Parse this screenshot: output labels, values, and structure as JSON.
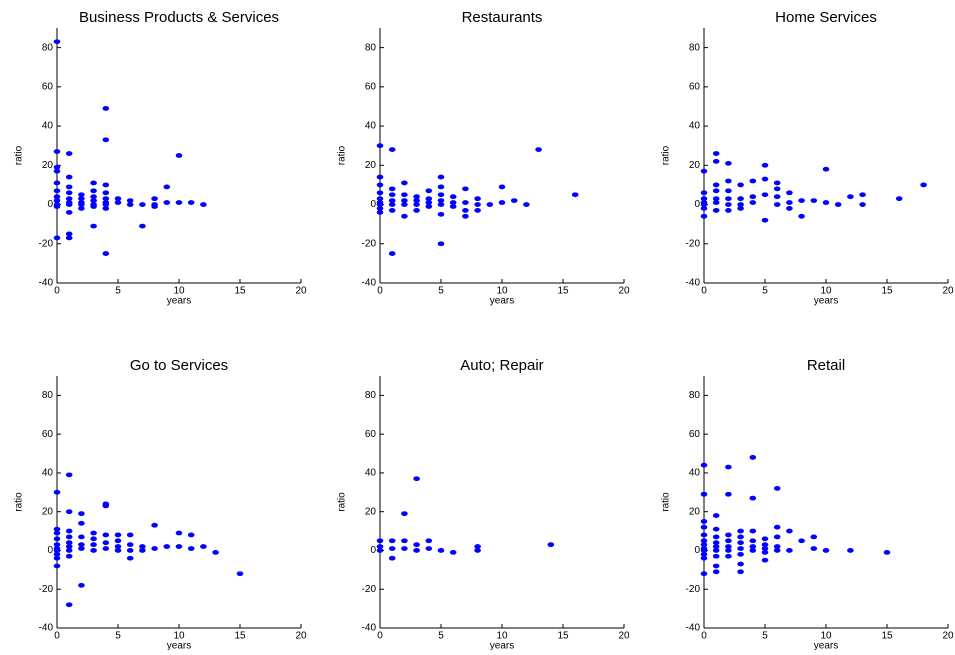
{
  "chart_data": [
    {
      "type": "scatter",
      "title": "Business Products & Services",
      "xlabel": "years",
      "ylabel": "ratio",
      "color": "#0000ff",
      "xlim": [
        0,
        20
      ],
      "ylim": [
        -40,
        90
      ],
      "xticks": [
        0,
        5,
        10,
        15,
        20
      ],
      "yticks": [
        -40,
        -20,
        0,
        20,
        40,
        60,
        80
      ],
      "x": [
        0,
        0,
        0,
        0,
        0,
        0,
        0,
        0,
        0,
        0,
        0,
        1,
        1,
        1,
        1,
        1,
        1,
        1,
        1,
        1,
        1,
        2,
        2,
        2,
        2,
        2,
        3,
        3,
        3,
        3,
        3,
        3,
        3,
        4,
        4,
        4,
        4,
        4,
        4,
        4,
        4,
        4,
        5,
        5,
        6,
        6,
        7,
        7,
        8,
        8,
        8,
        9,
        9,
        10,
        10,
        11,
        12
      ],
      "values": [
        83,
        27,
        19,
        17,
        11,
        7,
        4,
        2,
        0,
        -1,
        -17,
        26,
        14,
        9,
        6,
        3,
        1,
        0,
        -4,
        -15,
        -17,
        5,
        3,
        1,
        0,
        -2,
        11,
        7,
        4,
        2,
        0,
        -1,
        -11,
        49,
        33,
        10,
        6,
        3,
        1,
        0,
        -2,
        -25,
        3,
        1,
        2,
        0,
        0,
        -11,
        3,
        0,
        -1,
        9,
        1,
        25,
        1,
        1,
        0
      ]
    },
    {
      "type": "scatter",
      "title": "Restaurants",
      "xlabel": "years",
      "ylabel": "ratio",
      "color": "#0000ff",
      "xlim": [
        0,
        20
      ],
      "ylim": [
        -40,
        90
      ],
      "xticks": [
        0,
        5,
        10,
        15,
        20
      ],
      "yticks": [
        -40,
        -20,
        0,
        20,
        40,
        60,
        80
      ],
      "x": [
        0,
        0,
        0,
        0,
        0,
        0,
        0,
        0,
        0,
        1,
        1,
        1,
        1,
        1,
        1,
        1,
        2,
        2,
        2,
        2,
        2,
        3,
        3,
        3,
        3,
        4,
        4,
        4,
        4,
        5,
        5,
        5,
        5,
        5,
        5,
        5,
        6,
        6,
        6,
        7,
        7,
        7,
        7,
        8,
        8,
        8,
        9,
        10,
        10,
        11,
        12,
        13,
        16
      ],
      "values": [
        30,
        14,
        10,
        6,
        3,
        1,
        0,
        -2,
        -4,
        28,
        8,
        5,
        2,
        0,
        -3,
        -25,
        11,
        5,
        2,
        0,
        -6,
        4,
        2,
        0,
        -3,
        7,
        3,
        1,
        -1,
        14,
        9,
        5,
        2,
        0,
        -5,
        -20,
        4,
        1,
        -1,
        8,
        1,
        -3,
        -6,
        3,
        0,
        -3,
        0,
        9,
        1,
        2,
        0,
        28,
        5
      ]
    },
    {
      "type": "scatter",
      "title": "Home Services",
      "xlabel": "years",
      "ylabel": "ratio",
      "color": "#0000ff",
      "xlim": [
        0,
        20
      ],
      "ylim": [
        -40,
        90
      ],
      "xticks": [
        0,
        5,
        10,
        15,
        20
      ],
      "yticks": [
        -40,
        -20,
        0,
        20,
        40,
        60,
        80
      ],
      "x": [
        0,
        0,
        0,
        0,
        0,
        0,
        0,
        1,
        1,
        1,
        1,
        1,
        1,
        1,
        2,
        2,
        2,
        2,
        2,
        2,
        3,
        3,
        3,
        3,
        4,
        4,
        4,
        5,
        5,
        5,
        5,
        6,
        6,
        6,
        6,
        7,
        7,
        7,
        8,
        8,
        9,
        10,
        10,
        11,
        12,
        13,
        13,
        16,
        18
      ],
      "values": [
        17,
        6,
        3,
        1,
        0,
        -2,
        -6,
        26,
        22,
        10,
        7,
        3,
        1,
        -3,
        21,
        12,
        7,
        3,
        0,
        -3,
        10,
        3,
        0,
        -2,
        12,
        4,
        1,
        20,
        13,
        5,
        -8,
        11,
        8,
        4,
        0,
        6,
        1,
        -2,
        2,
        -6,
        2,
        18,
        1,
        0,
        4,
        5,
        0,
        3,
        10
      ]
    },
    {
      "type": "scatter",
      "title": "Go to Services",
      "xlabel": "years",
      "ylabel": "ratio",
      "color": "#0000ff",
      "xlim": [
        0,
        20
      ],
      "ylim": [
        -40,
        90
      ],
      "xticks": [
        0,
        5,
        10,
        15,
        20
      ],
      "yticks": [
        -40,
        -20,
        0,
        20,
        40,
        60,
        80
      ],
      "x": [
        0,
        0,
        0,
        0,
        0,
        0,
        0,
        0,
        0,
        0,
        1,
        1,
        1,
        1,
        1,
        1,
        1,
        1,
        1,
        2,
        2,
        2,
        2,
        2,
        2,
        3,
        3,
        3,
        3,
        4,
        4,
        4,
        4,
        4,
        5,
        5,
        5,
        5,
        6,
        6,
        6,
        6,
        7,
        7,
        8,
        8,
        9,
        10,
        10,
        11,
        11,
        12,
        13,
        15
      ],
      "values": [
        30,
        11,
        9,
        6,
        3,
        1,
        0,
        -2,
        -4,
        -8,
        39,
        20,
        10,
        7,
        4,
        2,
        0,
        -3,
        -28,
        19,
        14,
        7,
        3,
        1,
        -18,
        9,
        6,
        3,
        0,
        24,
        23,
        8,
        4,
        1,
        8,
        5,
        2,
        0,
        8,
        3,
        0,
        -4,
        2,
        0,
        13,
        1,
        2,
        9,
        2,
        8,
        1,
        2,
        -1,
        -12
      ]
    },
    {
      "type": "scatter",
      "title": "Auto; Repair",
      "xlabel": "years",
      "ylabel": "ratio",
      "color": "#0000ff",
      "xlim": [
        0,
        20
      ],
      "ylim": [
        -40,
        90
      ],
      "xticks": [
        0,
        5,
        10,
        15,
        20
      ],
      "yticks": [
        -40,
        -20,
        0,
        20,
        40,
        60,
        80
      ],
      "x": [
        0,
        0,
        0,
        1,
        1,
        1,
        2,
        2,
        2,
        3,
        3,
        3,
        4,
        4,
        5,
        6,
        8,
        8,
        14
      ],
      "values": [
        5,
        2,
        0,
        5,
        1,
        -4,
        19,
        5,
        1,
        37,
        3,
        0,
        5,
        1,
        0,
        -1,
        2,
        0,
        3
      ]
    },
    {
      "type": "scatter",
      "title": "Retail",
      "xlabel": "years",
      "ylabel": "ratio",
      "color": "#0000ff",
      "xlim": [
        0,
        20
      ],
      "ylim": [
        -40,
        90
      ],
      "xticks": [
        0,
        5,
        10,
        15,
        20
      ],
      "yticks": [
        -40,
        -20,
        0,
        20,
        40,
        60,
        80
      ],
      "x": [
        0,
        0,
        0,
        0,
        0,
        0,
        0,
        0,
        0,
        0,
        0,
        0,
        1,
        1,
        1,
        1,
        1,
        1,
        1,
        1,
        1,
        2,
        2,
        2,
        2,
        2,
        2,
        2,
        3,
        3,
        3,
        3,
        3,
        3,
        3,
        4,
        4,
        4,
        4,
        4,
        4,
        5,
        5,
        5,
        5,
        5,
        6,
        6,
        6,
        6,
        6,
        7,
        7,
        8,
        9,
        9,
        10,
        12,
        15
      ],
      "values": [
        44,
        29,
        15,
        12,
        8,
        5,
        3,
        1,
        0,
        -2,
        -4,
        -12,
        18,
        11,
        7,
        4,
        2,
        0,
        -3,
        -8,
        -11,
        43,
        29,
        8,
        5,
        2,
        0,
        -3,
        10,
        7,
        4,
        1,
        -2,
        -7,
        -11,
        48,
        27,
        10,
        5,
        2,
        0,
        6,
        3,
        1,
        -1,
        -5,
        32,
        12,
        7,
        2,
        0,
        10,
        0,
        5,
        7,
        1,
        0,
        0,
        -1
      ]
    }
  ]
}
